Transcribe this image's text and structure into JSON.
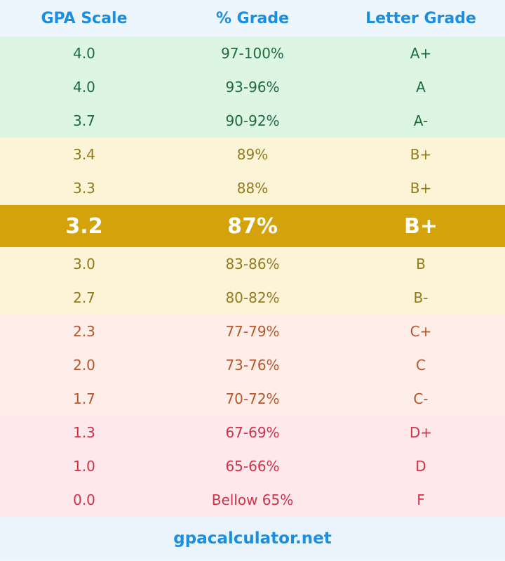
{
  "header": {
    "gpa": "GPA Scale",
    "percent": "% Grade",
    "letter": "Letter Grade"
  },
  "colors": {
    "header_text": "#1a8ee0",
    "green_bg": "#ddf6e3",
    "yellow_bg": "#fdf4d7",
    "peach_bg": "#fdeeea",
    "pink_bg": "#fde8ec",
    "highlight_bg": "#d4a20a"
  },
  "rows": [
    {
      "gpa": "4.0",
      "percent": "97-100%",
      "letter": "A+",
      "band": "green"
    },
    {
      "gpa": "4.0",
      "percent": "93-96%",
      "letter": "A",
      "band": "green"
    },
    {
      "gpa": "3.7",
      "percent": "90-92%",
      "letter": "A-",
      "band": "green"
    },
    {
      "gpa": "3.4",
      "percent": "89%",
      "letter": "B+",
      "band": "yellow"
    },
    {
      "gpa": "3.3",
      "percent": "88%",
      "letter": "B+",
      "band": "yellow"
    },
    {
      "gpa": "3.2",
      "percent": "87%",
      "letter": "B+",
      "band": "highlight"
    },
    {
      "gpa": "3.0",
      "percent": "83-86%",
      "letter": "B",
      "band": "yellow"
    },
    {
      "gpa": "2.7",
      "percent": "80-82%",
      "letter": "B-",
      "band": "yellow"
    },
    {
      "gpa": "2.3",
      "percent": "77-79%",
      "letter": "C+",
      "band": "peach"
    },
    {
      "gpa": "2.0",
      "percent": "73-76%",
      "letter": "C",
      "band": "peach"
    },
    {
      "gpa": "1.7",
      "percent": "70-72%",
      "letter": "C-",
      "band": "peach"
    },
    {
      "gpa": "1.3",
      "percent": "67-69%",
      "letter": "D+",
      "band": "pink"
    },
    {
      "gpa": "1.0",
      "percent": "65-66%",
      "letter": "D",
      "band": "pink"
    },
    {
      "gpa": "0.0",
      "percent": "Bellow 65%",
      "letter": "F",
      "band": "pink"
    }
  ],
  "footer": {
    "site": "gpacalculator.net"
  }
}
